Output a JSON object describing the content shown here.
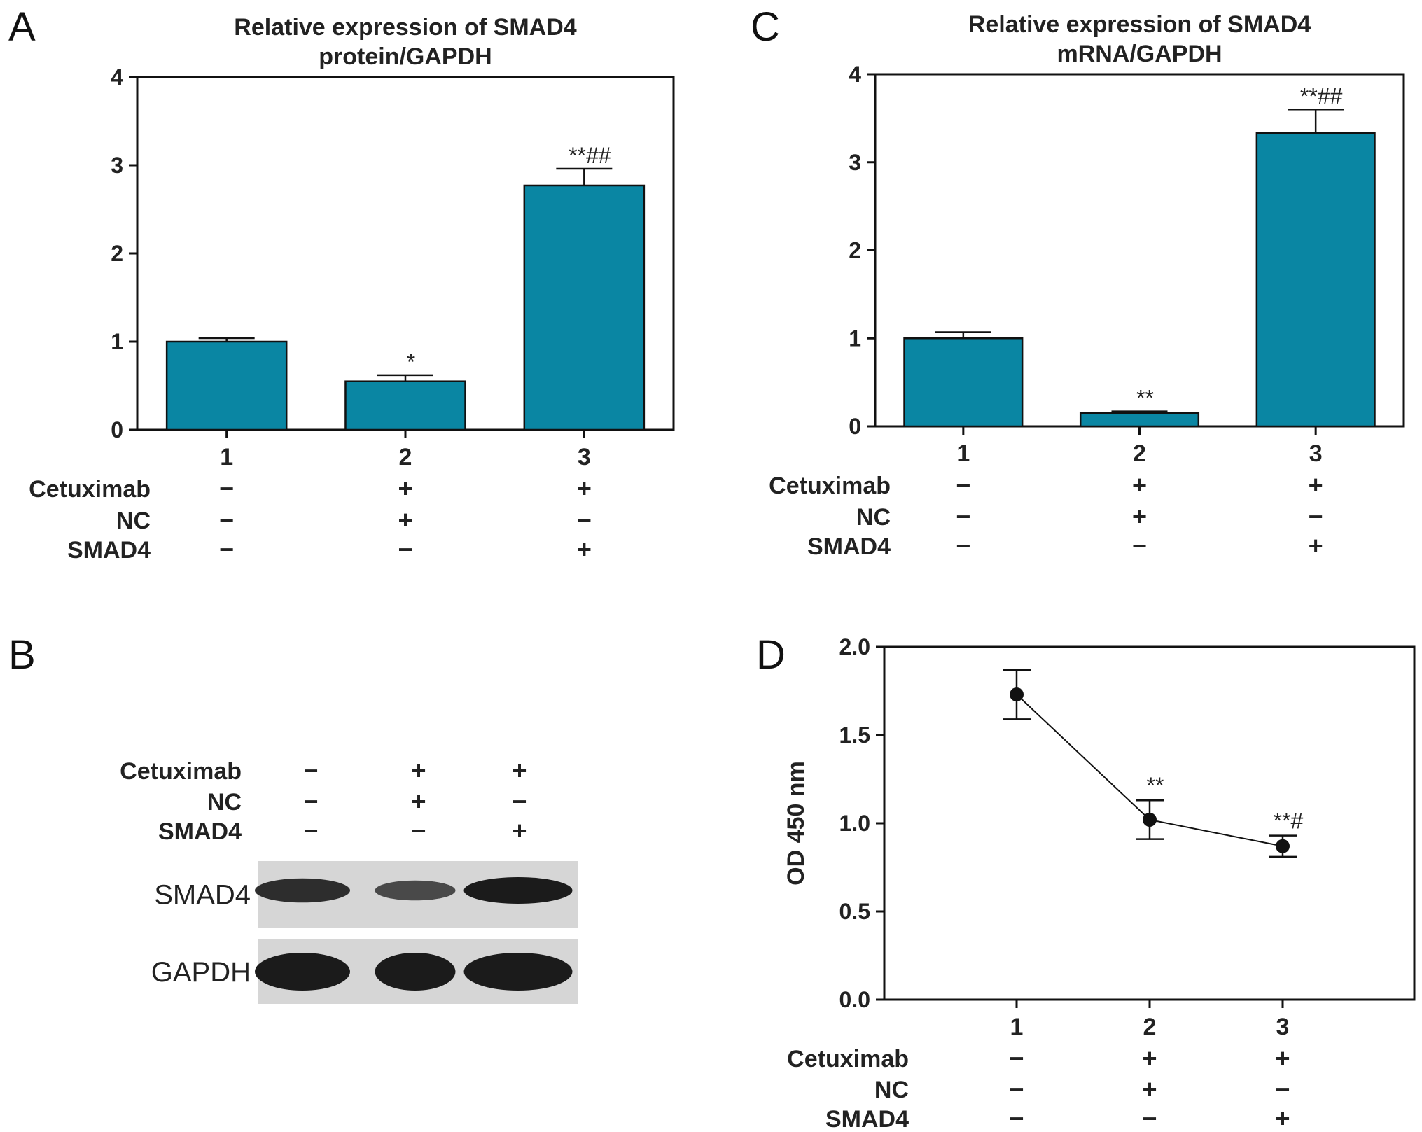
{
  "panels": {
    "A": {
      "letter": "A"
    },
    "B": {
      "letter": "B"
    },
    "C": {
      "letter": "C"
    },
    "D": {
      "letter": "D"
    }
  },
  "chart_data": [
    {
      "panel": "A",
      "type": "bar",
      "title": [
        "Relative expression of SMAD4",
        "protein/GAPDH"
      ],
      "categories": [
        "1",
        "2",
        "3"
      ],
      "values": [
        1.0,
        0.55,
        2.77
      ],
      "errors": [
        0.04,
        0.07,
        0.19
      ],
      "annotations": [
        "",
        "*",
        "**##"
      ],
      "ylim": [
        0,
        4
      ],
      "yticks": [
        "0",
        "1",
        "2",
        "3",
        "4"
      ],
      "bar_color": "#0a86a3",
      "conditions": [
        {
          "label": "Cetuximab",
          "signs": [
            "−",
            "+",
            "+"
          ]
        },
        {
          "label": "NC",
          "signs": [
            "−",
            "+",
            "−"
          ]
        },
        {
          "label": "SMAD4",
          "signs": [
            "−",
            "−",
            "+"
          ]
        }
      ]
    },
    {
      "panel": "C",
      "type": "bar",
      "title": [
        "Relative expression of SMAD4",
        "mRNA/GAPDH"
      ],
      "categories": [
        "1",
        "2",
        "3"
      ],
      "values": [
        1.0,
        0.15,
        3.33
      ],
      "errors": [
        0.07,
        0.02,
        0.27
      ],
      "annotations": [
        "",
        "**",
        "**##"
      ],
      "ylim": [
        0,
        4
      ],
      "yticks": [
        "0",
        "1",
        "2",
        "3",
        "4"
      ],
      "bar_color": "#0a86a3",
      "conditions": [
        {
          "label": "Cetuximab",
          "signs": [
            "−",
            "+",
            "+"
          ]
        },
        {
          "label": "NC",
          "signs": [
            "−",
            "+",
            "−"
          ]
        },
        {
          "label": "SMAD4",
          "signs": [
            "−",
            "−",
            "+"
          ]
        }
      ]
    },
    {
      "panel": "D",
      "type": "line",
      "ylabel": "OD 450 nm",
      "categories": [
        "1",
        "2",
        "3"
      ],
      "values": [
        1.73,
        1.02,
        0.87
      ],
      "errors": [
        0.14,
        0.11,
        0.06
      ],
      "annotations": [
        "",
        "**",
        "**#"
      ],
      "ylim": [
        0,
        2
      ],
      "yticks": [
        "0.0",
        "0.5",
        "1.0",
        "1.5",
        "2.0"
      ],
      "conditions": [
        {
          "label": "Cetuximab",
          "signs": [
            "−",
            "+",
            "+"
          ]
        },
        {
          "label": "NC",
          "signs": [
            "−",
            "+",
            "−"
          ]
        },
        {
          "label": "SMAD4",
          "signs": [
            "−",
            "−",
            "+"
          ]
        }
      ]
    }
  ],
  "blot": {
    "panel": "B",
    "conditions": [
      {
        "label": "Cetuximab",
        "signs": [
          "−",
          "+",
          "+"
        ]
      },
      {
        "label": "NC",
        "signs": [
          "−",
          "+",
          "−"
        ]
      },
      {
        "label": "SMAD4",
        "signs": [
          "−",
          "−",
          "+"
        ]
      }
    ],
    "bands": [
      {
        "label": "SMAD4",
        "intensity": [
          0.8,
          0.45,
          1.0
        ]
      },
      {
        "label": "GAPDH",
        "intensity": [
          1.0,
          1.0,
          1.0
        ]
      }
    ]
  }
}
